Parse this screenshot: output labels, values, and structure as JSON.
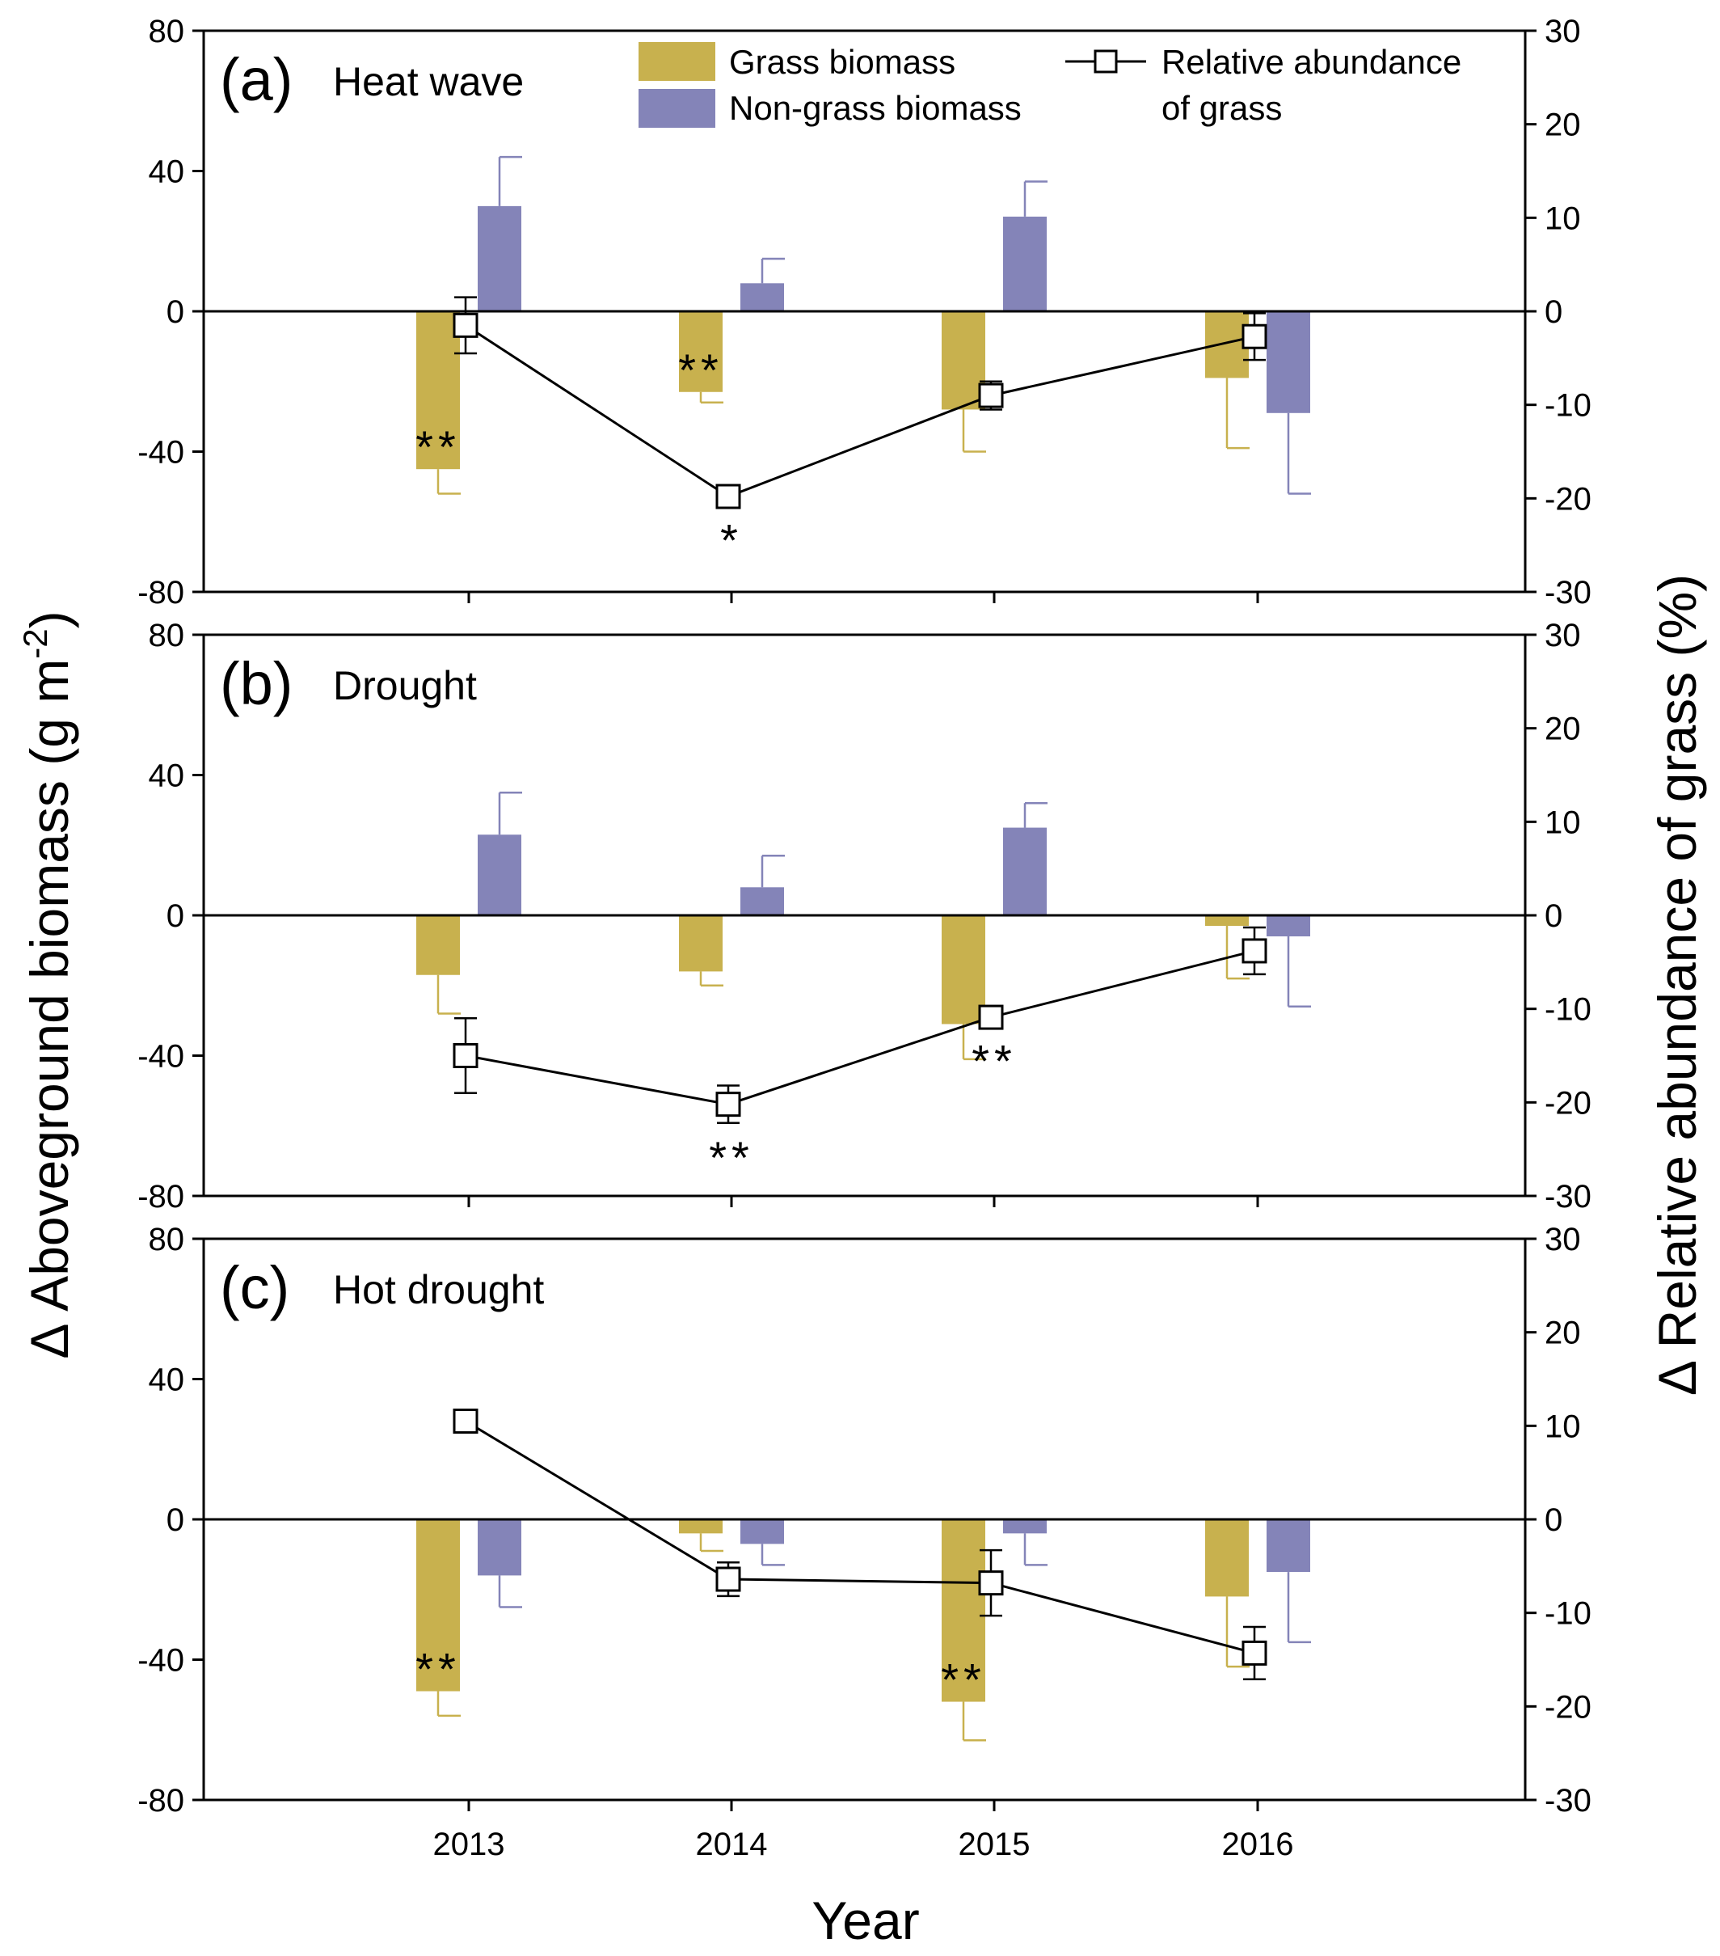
{
  "figure": {
    "y_left_label": "Δ Aboveground biomass (g m",
    "y_left_label_sup": "-2",
    "y_left_label_end": ")",
    "y_right_label": "Δ Relative abundance of grass (%)",
    "x_label": "Year"
  },
  "legend": {
    "grass": "Grass biomass",
    "nongrass": "Non-grass biomass",
    "relative_line1": "Relative abundance",
    "relative_line2": "of grass"
  },
  "colors": {
    "grass": "#c8b14e",
    "nongrass": "#8484b8",
    "line": "#000000"
  },
  "chart_data": [
    {
      "type": "bar",
      "panel": "(a)",
      "title": "Heat wave",
      "categories": [
        "2013",
        "2014",
        "2015",
        "2016"
      ],
      "ylim_left": [
        -80,
        80
      ],
      "yticks_left": [
        "80",
        "40",
        "0",
        "-40",
        "-80"
      ],
      "ylim_right": [
        -30,
        30
      ],
      "yticks_right": [
        "30",
        "20",
        "10",
        "0",
        "-10",
        "-20",
        "-30"
      ],
      "series": [
        {
          "name": "Grass biomass",
          "values": [
            -45,
            -23,
            -28,
            -19
          ],
          "err": [
            7,
            3,
            12,
            20
          ]
        },
        {
          "name": "Non-grass biomass",
          "values": [
            30,
            8,
            27,
            -29
          ],
          "err": [
            14,
            7,
            10,
            23
          ]
        },
        {
          "name": "Relative abundance of grass",
          "axis": "right",
          "values": [
            -1.5,
            -19.8,
            -9,
            -2.7
          ],
          "err": [
            3,
            1,
            1.5,
            2.5
          ]
        }
      ],
      "annotations": [
        {
          "text": "**",
          "category": "2013",
          "series": "Grass biomass"
        },
        {
          "text": "**",
          "category": "2014",
          "series": "Grass biomass"
        },
        {
          "text": "*",
          "category": "2014",
          "series": "Relative abundance of grass"
        }
      ]
    },
    {
      "type": "bar",
      "panel": "(b)",
      "title": "Drought",
      "categories": [
        "2013",
        "2014",
        "2015",
        "2016"
      ],
      "ylim_left": [
        -80,
        80
      ],
      "yticks_left": [
        "80",
        "40",
        "0",
        "-40",
        "-80"
      ],
      "ylim_right": [
        -30,
        30
      ],
      "yticks_right": [
        "30",
        "20",
        "10",
        "0",
        "-10",
        "-20",
        "-30"
      ],
      "series": [
        {
          "name": "Grass biomass",
          "values": [
            -17,
            -16,
            -31,
            -3
          ],
          "err": [
            11,
            4,
            10,
            15
          ]
        },
        {
          "name": "Non-grass biomass",
          "values": [
            23,
            8,
            25,
            -6
          ],
          "err": [
            12,
            9,
            7,
            20
          ]
        },
        {
          "name": "Relative abundance of grass",
          "axis": "right",
          "values": [
            -15,
            -20.2,
            -10.9,
            -3.8
          ],
          "err": [
            4,
            2,
            1,
            2.5
          ]
        }
      ],
      "annotations": [
        {
          "text": "**",
          "category": "2014",
          "series": "Relative abundance of grass"
        },
        {
          "text": "**",
          "category": "2015",
          "series": "Relative abundance of grass"
        }
      ]
    },
    {
      "type": "bar",
      "panel": "(c)",
      "title": "Hot drought",
      "categories": [
        "2013",
        "2014",
        "2015",
        "2016"
      ],
      "ylim_left": [
        -80,
        80
      ],
      "yticks_left": [
        "80",
        "40",
        "0",
        "-40",
        "-80"
      ],
      "ylim_right": [
        -30,
        30
      ],
      "yticks_right": [
        "30",
        "20",
        "10",
        "0",
        "-10",
        "-20",
        "-30"
      ],
      "series": [
        {
          "name": "Grass biomass",
          "values": [
            -49,
            -4,
            -52,
            -22
          ],
          "err": [
            7,
            5,
            11,
            20
          ]
        },
        {
          "name": "Non-grass biomass",
          "values": [
            -16,
            -7,
            -4,
            -15
          ],
          "err": [
            9,
            6,
            9,
            20
          ]
        },
        {
          "name": "Relative abundance of grass",
          "axis": "right",
          "values": [
            10.5,
            -6.4,
            -6.8,
            -14.3
          ],
          "err": [
            0.6,
            1.8,
            3.5,
            2.8
          ]
        }
      ],
      "annotations": [
        {
          "text": "**",
          "category": "2013",
          "series": "Grass biomass"
        },
        {
          "text": "**",
          "category": "2015",
          "series": "Grass biomass"
        }
      ]
    }
  ]
}
